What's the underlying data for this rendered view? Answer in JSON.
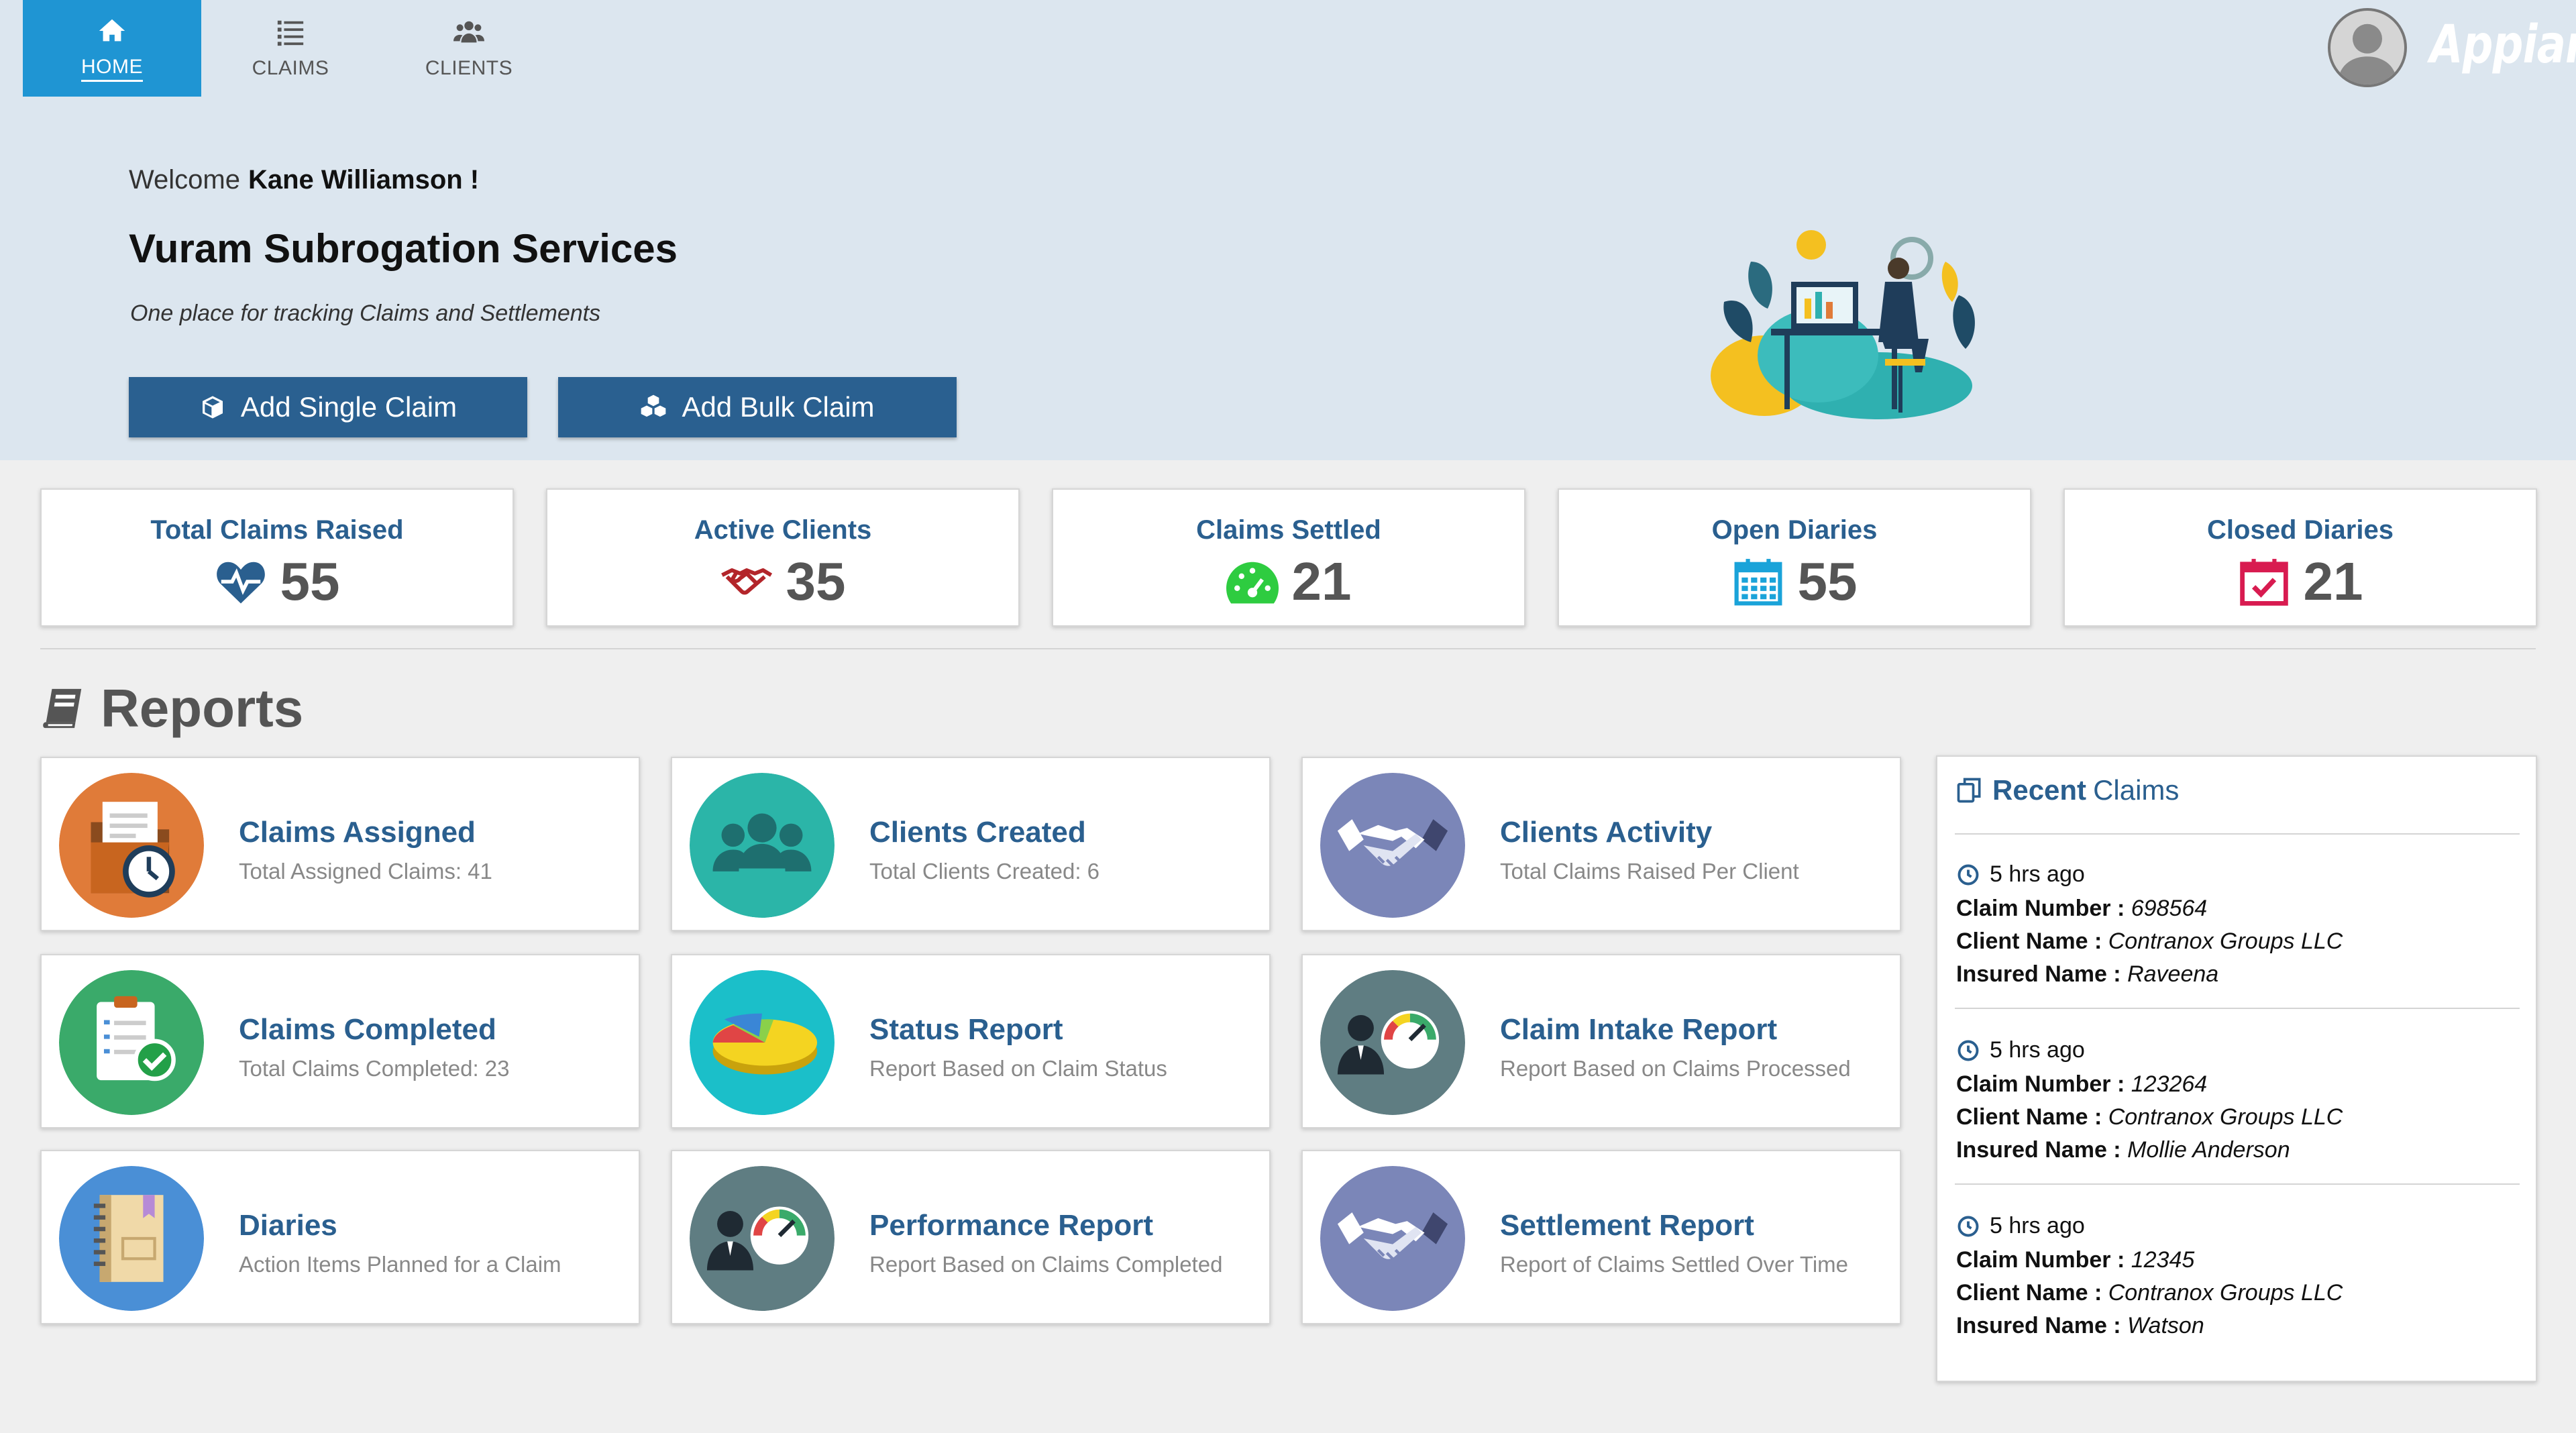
{
  "nav": {
    "items": [
      {
        "label": "HOME",
        "active": true,
        "icon": "home-icon"
      },
      {
        "label": "CLAIMS",
        "active": false,
        "icon": "list-icon"
      },
      {
        "label": "CLIENTS",
        "active": false,
        "icon": "users-icon"
      }
    ]
  },
  "header": {
    "brand": "Appian",
    "avatar_icon": "user-avatar-icon"
  },
  "hero": {
    "welcome_prefix": "Welcome",
    "user_name": "Kane Williamson !",
    "title": "Vuram Subrogation Services",
    "subtitle": "One place for tracking Claims and Settlements",
    "buttons": [
      {
        "label": "Add Single Claim",
        "icon": "cube-icon"
      },
      {
        "label": "Add Bulk Claim",
        "icon": "cubes-icon"
      }
    ]
  },
  "stats": [
    {
      "label": "Total Claims Raised",
      "value": "55",
      "icon": "heartbeat-icon",
      "color": "#2a5f8f"
    },
    {
      "label": "Active Clients",
      "value": "35",
      "icon": "handshake-icon",
      "color": "#b3252a"
    },
    {
      "label": "Claims Settled",
      "value": "21",
      "icon": "dashboard-icon",
      "color": "#2ecc40"
    },
    {
      "label": "Open Diaries",
      "value": "55",
      "icon": "calendar-icon",
      "color": "#1aa3d9"
    },
    {
      "label": "Closed Diaries",
      "value": "21",
      "icon": "calendar-check-icon",
      "color": "#d81b50"
    }
  ],
  "reports": {
    "title": "Reports",
    "icon": "book-icon",
    "cards": [
      {
        "title": "Claims Assigned",
        "subtitle": "Total Assigned Claims: 41",
        "icon": "claims-assigned-icon",
        "color": "#e07b39"
      },
      {
        "title": "Clients Created",
        "subtitle": "Total Clients Created: 6",
        "icon": "clients-group-icon",
        "color": "#2bb5a8"
      },
      {
        "title": "Clients Activity",
        "subtitle": "Total Claims Raised Per Client",
        "icon": "handshake-icon",
        "color": "#7b86b8"
      },
      {
        "title": "Claims Completed",
        "subtitle": "Total Claims Completed: 23",
        "icon": "checklist-icon",
        "color": "#3aaa6a"
      },
      {
        "title": "Status Report",
        "subtitle": "Report Based on Claim Status",
        "icon": "pie-chart-icon",
        "color": "#1bbfc9"
      },
      {
        "title": "Claim Intake Report",
        "subtitle": "Report Based on Claims Processed",
        "icon": "performance-gauge-icon",
        "color": "#5f7d82"
      },
      {
        "title": "Diaries",
        "subtitle": "Action Items Planned for a Claim",
        "icon": "diary-book-icon",
        "color": "#4a8fd6"
      },
      {
        "title": "Performance Report",
        "subtitle": "Report Based on Claims Completed",
        "icon": "performance-gauge-icon",
        "color": "#5f7d82"
      },
      {
        "title": "Settlement Report",
        "subtitle": "Report of Claims Settled Over Time",
        "icon": "handshake-icon",
        "color": "#7b86b8"
      }
    ]
  },
  "recent": {
    "title_bold": "Recent",
    "title_rest": "Claims",
    "icon": "copy-icon",
    "claims": [
      {
        "time": "5 hrs ago",
        "claim_label": "Claim Number :",
        "claim_number": "698564",
        "client_label": "Client Name :",
        "client_name": "Contranox Groups LLC",
        "insured_label": "Insured Name :",
        "insured_name": "Raveena"
      },
      {
        "time": "5 hrs ago",
        "claim_label": "Claim Number :",
        "claim_number": "123264",
        "client_label": "Client Name :",
        "client_name": "Contranox Groups LLC",
        "insured_label": "Insured Name :",
        "insured_name": "Mollie Anderson"
      },
      {
        "time": "5 hrs ago",
        "claim_label": "Claim Number :",
        "claim_number": "12345",
        "client_label": "Client Name :",
        "client_name": "Contranox Groups LLC",
        "insured_label": "Insured Name :",
        "insured_name": "Watson"
      }
    ]
  }
}
